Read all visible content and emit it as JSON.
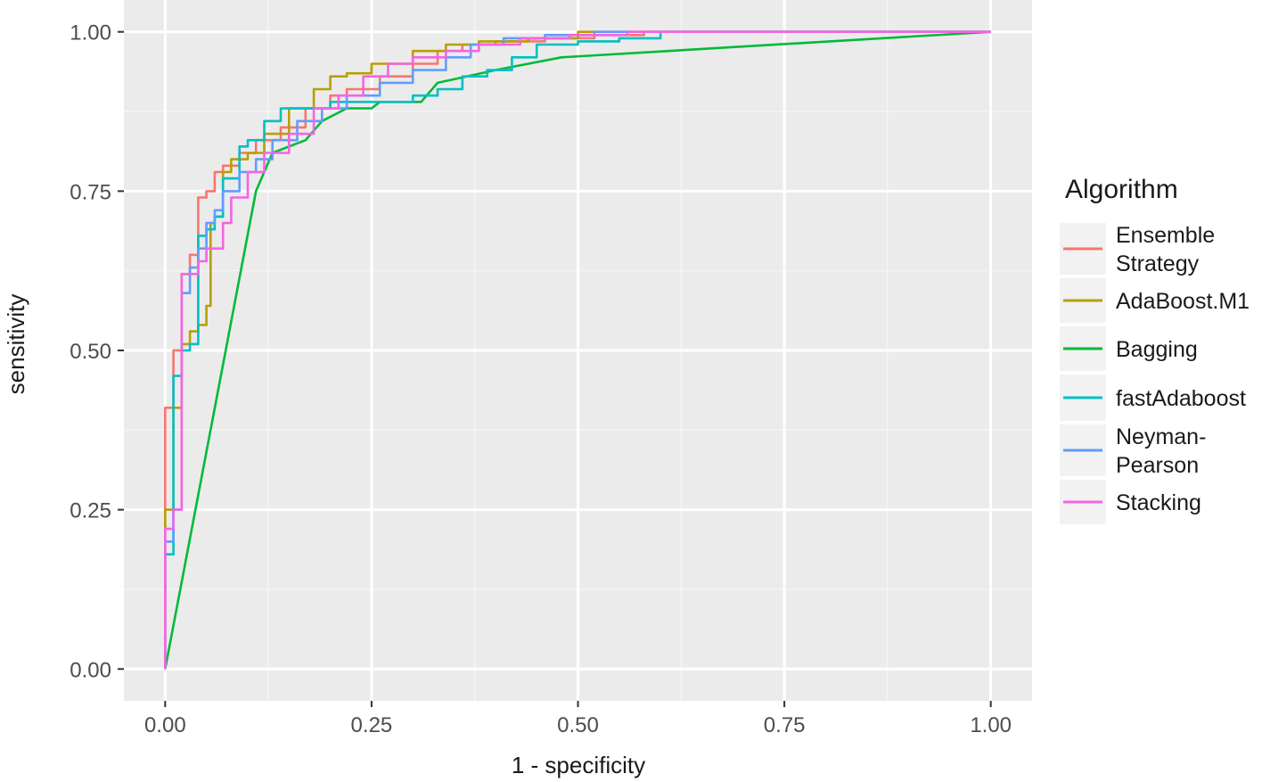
{
  "chart_data": {
    "type": "line",
    "title": "",
    "xlabel": "1 - specificity",
    "ylabel": "sensitivity",
    "xlim": [
      -0.05,
      1.05
    ],
    "ylim": [
      -0.05,
      1.05
    ],
    "xticks": [
      "0.00",
      "0.25",
      "0.50",
      "0.75",
      "1.00"
    ],
    "yticks": [
      "0.00",
      "0.25",
      "0.50",
      "0.75",
      "1.00"
    ],
    "xtick_values": [
      0,
      0.25,
      0.5,
      0.75,
      1
    ],
    "ytick_values": [
      0,
      0.25,
      0.5,
      0.75,
      1
    ],
    "grid": true,
    "legend": {
      "title": "Algorithm",
      "position": "right"
    },
    "series": [
      {
        "name": "Ensemble Strategy",
        "label_lines": [
          "Ensemble",
          "Strategy"
        ],
        "color": "#F8766D",
        "step": true,
        "x": [
          0,
          0,
          0.01,
          0.01,
          0.02,
          0.02,
          0.03,
          0.04,
          0.05,
          0.06,
          0.07,
          0.09,
          0.11,
          0.14,
          0.17,
          0.2,
          0.22,
          0.26,
          0.3,
          0.33,
          0.36,
          0.4,
          0.46,
          0.52,
          0.58,
          1
        ],
        "y": [
          0,
          0.41,
          0.41,
          0.5,
          0.52,
          0.62,
          0.65,
          0.74,
          0.75,
          0.78,
          0.79,
          0.81,
          0.83,
          0.85,
          0.88,
          0.9,
          0.91,
          0.93,
          0.95,
          0.97,
          0.98,
          0.985,
          0.99,
          0.995,
          1,
          1
        ]
      },
      {
        "name": "AdaBoost.M1",
        "label_lines": [
          "AdaBoost.M1"
        ],
        "color": "#B79F00",
        "step": true,
        "x": [
          0,
          0,
          0.01,
          0.01,
          0.02,
          0.02,
          0.03,
          0.04,
          0.05,
          0.055,
          0.06,
          0.07,
          0.08,
          0.1,
          0.12,
          0.15,
          0.18,
          0.2,
          0.22,
          0.25,
          0.3,
          0.34,
          0.38,
          0.44,
          0.5,
          1
        ],
        "y": [
          0,
          0.25,
          0.25,
          0.41,
          0.41,
          0.51,
          0.53,
          0.54,
          0.57,
          0.7,
          0.71,
          0.78,
          0.8,
          0.81,
          0.84,
          0.88,
          0.91,
          0.93,
          0.935,
          0.95,
          0.97,
          0.98,
          0.985,
          0.99,
          1,
          1
        ]
      },
      {
        "name": "Bagging",
        "label_lines": [
          "Bagging"
        ],
        "color": "#00BA38",
        "step": false,
        "x": [
          0,
          0.11,
          0.13,
          0.17,
          0.19,
          0.22,
          0.25,
          0.26,
          0.31,
          0.33,
          0.4,
          0.48,
          1
        ],
        "y": [
          0,
          0.75,
          0.81,
          0.83,
          0.86,
          0.88,
          0.88,
          0.89,
          0.89,
          0.92,
          0.94,
          0.96,
          1
        ]
      },
      {
        "name": "fastAdaboost",
        "label_lines": [
          "fastAdaboost"
        ],
        "color": "#00BFC4",
        "step": true,
        "x": [
          0,
          0,
          0.01,
          0.01,
          0.02,
          0.02,
          0.03,
          0.04,
          0.05,
          0.06,
          0.07,
          0.09,
          0.1,
          0.12,
          0.14,
          0.2,
          0.3,
          0.33,
          0.36,
          0.39,
          0.42,
          0.45,
          0.47,
          0.5,
          0.55,
          0.6,
          1
        ],
        "y": [
          0,
          0.18,
          0.18,
          0.46,
          0.46,
          0.5,
          0.51,
          0.68,
          0.69,
          0.71,
          0.77,
          0.82,
          0.83,
          0.86,
          0.88,
          0.89,
          0.9,
          0.91,
          0.93,
          0.94,
          0.96,
          0.98,
          0.98,
          0.985,
          0.99,
          1,
          1
        ]
      },
      {
        "name": "Neyman-Pearson",
        "label_lines": [
          "Neyman-",
          "Pearson"
        ],
        "color": "#619CFF",
        "step": true,
        "x": [
          0,
          0,
          0.01,
          0.01,
          0.02,
          0.02,
          0.03,
          0.04,
          0.05,
          0.06,
          0.07,
          0.09,
          0.11,
          0.13,
          0.16,
          0.19,
          0.22,
          0.26,
          0.3,
          0.34,
          0.37,
          0.41,
          0.46,
          0.52,
          1
        ],
        "y": [
          0,
          0.2,
          0.2,
          0.25,
          0.3,
          0.59,
          0.63,
          0.66,
          0.7,
          0.72,
          0.75,
          0.78,
          0.8,
          0.83,
          0.86,
          0.88,
          0.9,
          0.92,
          0.94,
          0.96,
          0.98,
          0.99,
          0.995,
          1,
          1
        ]
      },
      {
        "name": "Stacking",
        "label_lines": [
          "Stacking"
        ],
        "color": "#F564E3",
        "step": true,
        "x": [
          0,
          0,
          0.01,
          0.01,
          0.02,
          0.02,
          0.04,
          0.05,
          0.07,
          0.08,
          0.1,
          0.12,
          0.15,
          0.18,
          0.21,
          0.24,
          0.27,
          0.3,
          0.34,
          0.38,
          0.43,
          0.49,
          0.56,
          1
        ],
        "y": [
          0,
          0.22,
          0.22,
          0.25,
          0.25,
          0.62,
          0.64,
          0.66,
          0.7,
          0.74,
          0.78,
          0.81,
          0.84,
          0.88,
          0.9,
          0.93,
          0.95,
          0.96,
          0.97,
          0.98,
          0.99,
          0.995,
          1,
          1
        ]
      }
    ]
  }
}
